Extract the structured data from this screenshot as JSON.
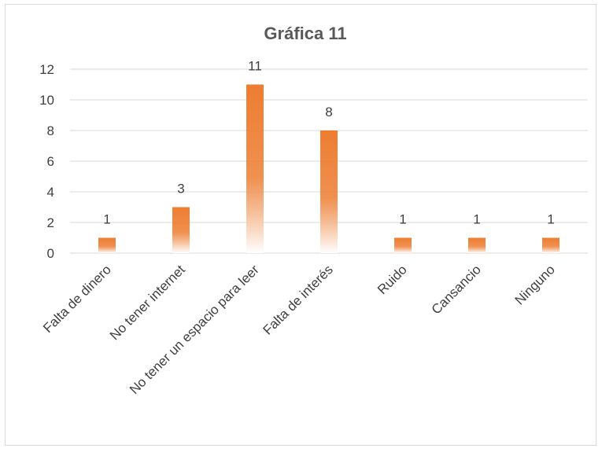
{
  "chart_data": {
    "type": "bar",
    "title": "Gráfica 11",
    "xlabel": "",
    "ylabel": "",
    "categories": [
      "Falta de dinero",
      "No tener internet",
      "No tener un espacio para leer",
      "Falta de interés",
      "Ruido",
      "Cansancio",
      "Ninguno"
    ],
    "values": [
      1,
      3,
      11,
      8,
      1,
      1,
      1
    ],
    "ylim": [
      0,
      12
    ],
    "yticks": [
      0,
      2,
      4,
      6,
      8,
      10,
      12
    ],
    "data_labels": true,
    "grid": true,
    "legend": "none",
    "bar_color_top": "#ed7d31",
    "bar_color_bottom": "#ffffff",
    "grid_color": "#d9d9d9",
    "text_color": "#404040",
    "title_color": "#595959"
  }
}
